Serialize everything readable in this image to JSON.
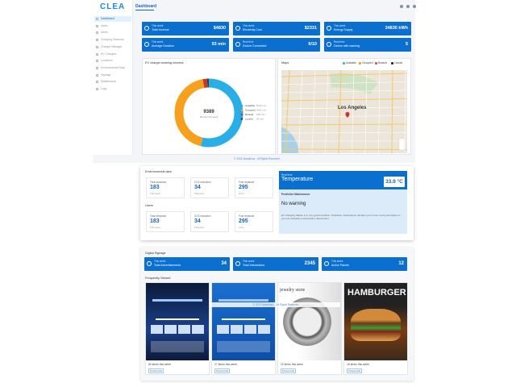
{
  "sidebar": {
    "logo": "CLEA",
    "menu": [
      "Dashboard",
      "Users",
      "Alerts",
      "Charging Sessions",
      "Charger Manager",
      "EV Chargers",
      "Locations",
      "Environmental Data",
      "Signage",
      "Maintenance",
      "Logs"
    ]
  },
  "header": {
    "title": "Dashboard"
  },
  "stats": [
    {
      "period": "This week",
      "label": "Total revenue",
      "value": "$4830"
    },
    {
      "period": "This week",
      "label": "Electricity Cost",
      "value": "$2331"
    },
    {
      "period": "This week",
      "label": "Energy Supply",
      "value": "34830 kWh"
    },
    {
      "period": "This week",
      "label": "Average Duration",
      "value": "93 min"
    },
    {
      "period": "Real time",
      "label": "Device Connected",
      "value": "9/10"
    },
    {
      "period": "Real time",
      "label": "Device with warning",
      "value": "5"
    }
  ],
  "charger_chart": {
    "type": "donut",
    "title": "EV charger working minutes",
    "total": 9389,
    "total_label": "Minutes this week",
    "segments": [
      {
        "name": "Available",
        "color": "#29aee6",
        "value": 5046,
        "value_label": "5046 min"
      },
      {
        "name": "Occupied",
        "color": "#f7a01d",
        "value": 4061,
        "value_label": "4061 min"
      },
      {
        "name": "Booked",
        "color": "#c0392b",
        "value": 188,
        "value_label": "188 min"
      },
      {
        "name": "Locked",
        "color": "#3c3c46",
        "value": 94,
        "value_label": "94 min"
      }
    ]
  },
  "map": {
    "title": "Maps",
    "city": "Los Angeles",
    "legend": [
      {
        "name": "Available",
        "color": "#2ecc71"
      },
      {
        "name": "Occupied",
        "color": "#f39c12"
      },
      {
        "name": "Booked",
        "color": "#e74c3c"
      },
      {
        "name": "Locked",
        "color": "#222222"
      }
    ]
  },
  "footer": "© 2023 Ubiquitous - All Rights Reserved",
  "environmental": {
    "title": "Environmental data",
    "cards": [
      {
        "label": "Total sessions",
        "value": 183,
        "unit": "This week"
      },
      {
        "label": "CO2 reduction",
        "value": 34,
        "unit": "Kilograms"
      },
      {
        "label": "Fuel replaced",
        "value": 295,
        "unit": "Liters"
      }
    ]
  },
  "users": {
    "title": "Users",
    "cards": [
      {
        "label": "Total sessions",
        "value": 183,
        "unit": "This week"
      },
      {
        "label": "CO2 reduction",
        "value": 34,
        "unit": "Kilograms"
      },
      {
        "label": "Fuel replaced",
        "value": 295,
        "unit": "Liters"
      }
    ]
  },
  "temperature": {
    "period": "Real time",
    "title": "Temperature",
    "value": "33.9 °C"
  },
  "maintenance": {
    "title": "Predictive Maintenance",
    "status": "No warning",
    "text": "EV Charging Station is in very good condition. Predictive maintenance will alert you in time of any anomalies so you can schedule a technician's intervention."
  },
  "signage": {
    "title": "Digital Signage",
    "cards": [
      {
        "period": "This week",
        "label": "Total Advertisements",
        "value": 34
      },
      {
        "period": "This week",
        "label": "Total Interactions",
        "value": 2345
      },
      {
        "period": "This week",
        "label": "Active Panels",
        "value": 12
      }
    ]
  },
  "frequently_viewed": {
    "title": "Frequently Viewed",
    "items": [
      {
        "views": "60 times this week",
        "tag": "Product Ads"
      },
      {
        "views": "27 times this week",
        "tag": "Product Ads"
      },
      {
        "views": "22 times this week",
        "tag": "Product Ads",
        "image_text": "jewelry store"
      },
      {
        "views": "18 times this week",
        "tag": "Product Ads",
        "image_text": "HAMBURGER"
      }
    ]
  },
  "overlay_footer": "© 2023 Ubiquitous - All Rights Reserved"
}
